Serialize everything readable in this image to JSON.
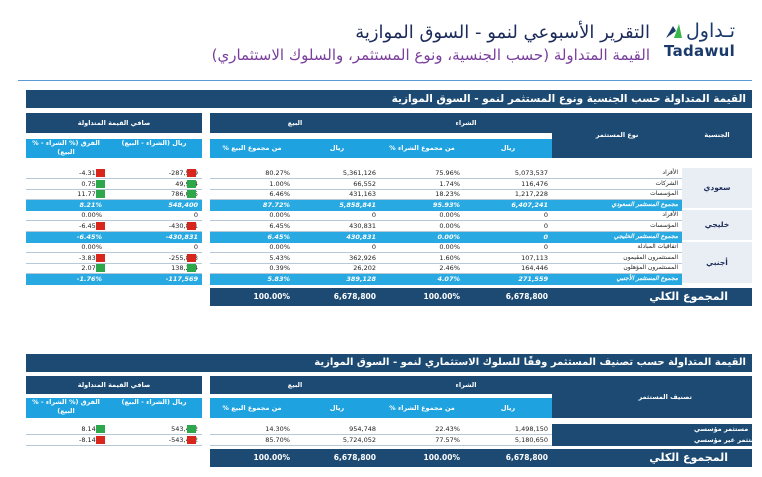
{
  "header": {
    "logo_ar": "تـداول",
    "logo_en": "Tadawul",
    "title": "التقرير الأسبوعي لنمو - السوق الموازية",
    "subtitle": "القيمة المتداولة (حسب الجنسية، ونوع المستثمر، والسلوك الاستثماري)"
  },
  "t1": {
    "band": "القيمة المتداولة حسب الجنسية ونوع المستثمر لنمو - السوق الموازية",
    "col_nationality": "الجنسية",
    "col_investor_type": "نوع المستثمر",
    "grp_buy": "الشراء",
    "grp_sell": "البيع",
    "grp_net": "صافي القيمة المتداولة",
    "h_sar": "ريال",
    "h_pct_buy": "% من مجموع الشراء",
    "h_pct_sell": "% من مجموع البيع",
    "h_net_sar": "ريال (الشراء - البيع)",
    "h_diff": "الفرق (% الشراء - % البيع)",
    "groups": [
      {
        "name": "سعودي",
        "rows": [
          {
            "label": "الأفراد",
            "buy": "5,073,537",
            "buy_pct": "75.96%",
            "sell": "5,361,126",
            "sell_pct": "80.27%",
            "net": "-287,589",
            "net_s": "r",
            "diff": "-4.31%",
            "diff_s": "r"
          },
          {
            "label": "الشركات",
            "buy": "116,476",
            "buy_pct": "1.74%",
            "sell": "66,552",
            "sell_pct": "1.00%",
            "net": "49,924",
            "net_s": "g",
            "diff": "0.75%",
            "diff_s": "g"
          },
          {
            "label": "المؤسسات",
            "buy": "1,217,228",
            "buy_pct": "18.23%",
            "sell": "431,163",
            "sell_pct": "6.46%",
            "net": "786,065",
            "net_s": "g",
            "diff": "11.77%",
            "diff_s": "g"
          },
          {
            "label": "مجموع المستثمر السعودي",
            "buy": "6,407,241",
            "buy_pct": "95.93%",
            "sell": "5,858,841",
            "sell_pct": "87.72%",
            "net": "548,400",
            "net_s": "",
            "diff": "8.21%",
            "diff_s": "",
            "total": true
          }
        ]
      },
      {
        "name": "خليجي",
        "rows": [
          {
            "label": "الأفراد",
            "buy": "0",
            "buy_pct": "0.00%",
            "sell": "0",
            "sell_pct": "0.00%",
            "net": "0",
            "net_s": "",
            "diff": "0.00%",
            "diff_s": ""
          },
          {
            "label": "المؤسسات",
            "buy": "0",
            "buy_pct": "0.00%",
            "sell": "430,831",
            "sell_pct": "6.45%",
            "net": "-430,831",
            "net_s": "r",
            "diff": "-6.45%",
            "diff_s": "r"
          },
          {
            "label": "مجموع المستثمر الخليجي",
            "buy": "0",
            "buy_pct": "0.00%",
            "sell": "430,831",
            "sell_pct": "6.45%",
            "net": "-430,831",
            "net_s": "",
            "diff": "-6.45%",
            "diff_s": "",
            "total": true
          }
        ]
      },
      {
        "name": "أجنبي",
        "rows": [
          {
            "label": "اتفاقيات المبادلة",
            "buy": "0",
            "buy_pct": "0.00%",
            "sell": "0",
            "sell_pct": "0.00%",
            "net": "0",
            "net_s": "",
            "diff": "0.00%",
            "diff_s": ""
          },
          {
            "label": "المستثمرون المقيمون",
            "buy": "107,113",
            "buy_pct": "1.60%",
            "sell": "362,926",
            "sell_pct": "5.43%",
            "net": "-255,813",
            "net_s": "r",
            "diff": "-3.83%",
            "diff_s": "r"
          },
          {
            "label": "المستثمرون المؤهلون",
            "buy": "164,446",
            "buy_pct": "2.46%",
            "sell": "26,202",
            "sell_pct": "0.39%",
            "net": "138,244",
            "net_s": "g",
            "diff": "2.07%",
            "diff_s": "g"
          },
          {
            "label": "مجموع المستثمر الأجنبي",
            "buy": "271,559",
            "buy_pct": "4.07%",
            "sell": "389,128",
            "sell_pct": "5.83%",
            "net": "-117,569",
            "net_s": "",
            "diff": "-1.76%",
            "diff_s": "",
            "total": true
          }
        ]
      }
    ],
    "grand": {
      "label": "المجموع الكلي",
      "buy": "6,678,800",
      "buy_pct": "100.00%",
      "sell": "6,678,800",
      "sell_pct": "100.00%"
    }
  },
  "t2": {
    "band": "القيمة المتداولة حسب تصنيف المستثمر وفقًا للسلوك الاستثماري لنمو - السوق الموازية",
    "col_class": "تصنيف المستثمر",
    "rows": [
      {
        "label": "مستثمر مؤسسي",
        "buy": "1,498,150",
        "buy_pct": "22.43%",
        "sell": "954,748",
        "sell_pct": "14.30%",
        "net": "543,402",
        "net_s": "g",
        "diff": "8.14%",
        "diff_s": "g"
      },
      {
        "label": "مستثمر غير مؤسسي",
        "buy": "5,180,650",
        "buy_pct": "77.57%",
        "sell": "5,724,052",
        "sell_pct": "85.70%",
        "net": "-543,402",
        "net_s": "r",
        "diff": "-8.14%",
        "diff_s": "r"
      }
    ],
    "grand": {
      "label": "المجموع الكلي",
      "buy": "6,678,800",
      "buy_pct": "100.00%",
      "sell": "6,678,800",
      "sell_pct": "100.00%"
    }
  },
  "colors": {
    "navy": "#1c4a72",
    "cyan": "#1ea3e0",
    "green": "#2ca84a",
    "red": "#d9261c"
  }
}
